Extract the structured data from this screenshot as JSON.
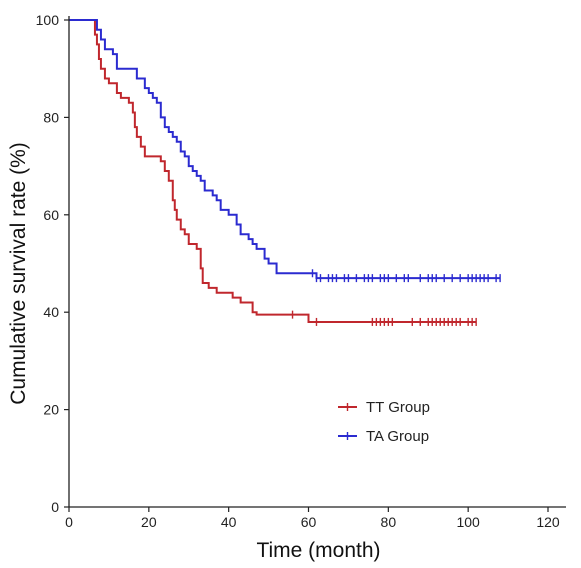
{
  "chart_data": {
    "type": "line",
    "title": "",
    "xlabel": "Time (month)",
    "ylabel": "Cumulative survival rate (%)",
    "xlim": [
      0,
      120
    ],
    "ylim": [
      0,
      100
    ],
    "x_ticks": [
      0,
      20,
      40,
      60,
      80,
      100,
      120
    ],
    "y_ticks": [
      0,
      20,
      40,
      60,
      80,
      100
    ],
    "grid": false,
    "legend_position": "lower-right",
    "series": [
      {
        "name": "TT Group",
        "color": "#c0272d",
        "step": true,
        "points": [
          [
            0,
            100
          ],
          [
            6,
            100
          ],
          [
            6.5,
            97
          ],
          [
            7,
            95
          ],
          [
            7.5,
            92
          ],
          [
            8,
            90
          ],
          [
            9,
            88
          ],
          [
            10,
            87
          ],
          [
            12,
            85
          ],
          [
            13,
            84
          ],
          [
            15,
            83
          ],
          [
            16,
            81
          ],
          [
            16.5,
            78
          ],
          [
            17,
            76
          ],
          [
            18,
            74
          ],
          [
            19,
            72
          ],
          [
            22,
            72
          ],
          [
            23,
            71
          ],
          [
            24,
            69
          ],
          [
            25,
            67
          ],
          [
            26,
            63
          ],
          [
            26.5,
            61
          ],
          [
            27,
            59
          ],
          [
            28,
            57
          ],
          [
            29,
            56
          ],
          [
            30,
            54
          ],
          [
            32,
            53
          ],
          [
            33,
            49
          ],
          [
            33.5,
            46
          ],
          [
            35,
            45
          ],
          [
            37,
            44
          ],
          [
            41,
            43
          ],
          [
            43,
            42
          ],
          [
            46,
            40
          ],
          [
            47,
            39.5
          ],
          [
            59,
            39.5
          ],
          [
            60,
            38
          ],
          [
            102,
            38
          ]
        ],
        "censored_x": [
          56,
          62,
          76,
          77,
          78,
          79,
          80,
          81,
          86,
          88,
          90,
          91,
          92,
          93,
          94,
          95,
          96,
          97,
          98,
          100,
          101,
          102
        ]
      },
      {
        "name": "TA Group",
        "color": "#2b2bd0",
        "step": true,
        "points": [
          [
            0,
            100
          ],
          [
            6,
            100
          ],
          [
            7,
            98
          ],
          [
            8,
            96
          ],
          [
            9,
            94
          ],
          [
            11,
            93
          ],
          [
            12,
            90
          ],
          [
            16,
            90
          ],
          [
            17,
            88
          ],
          [
            19,
            86
          ],
          [
            20,
            85
          ],
          [
            21,
            84
          ],
          [
            22,
            83
          ],
          [
            23,
            80
          ],
          [
            24,
            78
          ],
          [
            25,
            77
          ],
          [
            26,
            76
          ],
          [
            27,
            75
          ],
          [
            28,
            73
          ],
          [
            29,
            72
          ],
          [
            30,
            70
          ],
          [
            31,
            69
          ],
          [
            32,
            68
          ],
          [
            33,
            67
          ],
          [
            34,
            65
          ],
          [
            36,
            64
          ],
          [
            37,
            63
          ],
          [
            38,
            61
          ],
          [
            40,
            60
          ],
          [
            42,
            58
          ],
          [
            43,
            56
          ],
          [
            45,
            55
          ],
          [
            46,
            54
          ],
          [
            47,
            53
          ],
          [
            49,
            51
          ],
          [
            50,
            50
          ],
          [
            52,
            48
          ],
          [
            60,
            48
          ],
          [
            62,
            47
          ],
          [
            108,
            47
          ]
        ],
        "censored_x": [
          61,
          62,
          63,
          65,
          66,
          67,
          69,
          70,
          72,
          74,
          75,
          76,
          78,
          79,
          80,
          82,
          84,
          85,
          88,
          90,
          91,
          92,
          94,
          96,
          98,
          100,
          101,
          102,
          103,
          104,
          105,
          107,
          108
        ]
      }
    ]
  }
}
